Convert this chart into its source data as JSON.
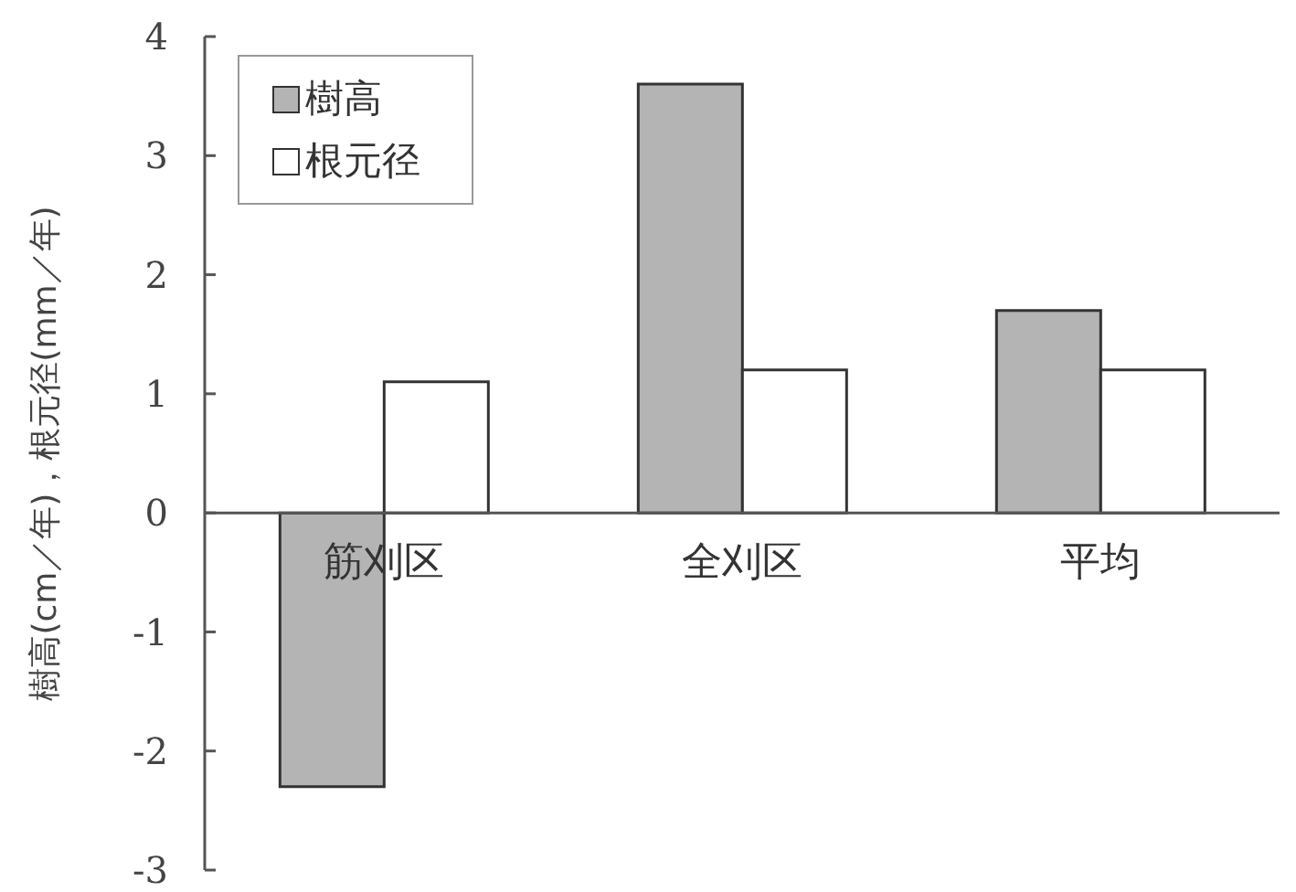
{
  "chart_data": {
    "type": "bar",
    "ylabel": "樹高(cm／年)，根元径(mm／年)",
    "categories": [
      "筋刈区",
      "全刈区",
      "平均"
    ],
    "series": [
      {
        "name": "樹高",
        "color": "#b4b4b4",
        "values": [
          -2.3,
          3.6,
          1.7
        ]
      },
      {
        "name": "根元径",
        "color": "#ffffff",
        "values": [
          1.1,
          1.2,
          1.2
        ]
      }
    ],
    "ylim": [
      -3,
      4
    ],
    "yticks": [
      -3,
      -2,
      -1,
      0,
      1,
      2,
      3,
      4
    ],
    "legend": "top left",
    "grid": false
  }
}
